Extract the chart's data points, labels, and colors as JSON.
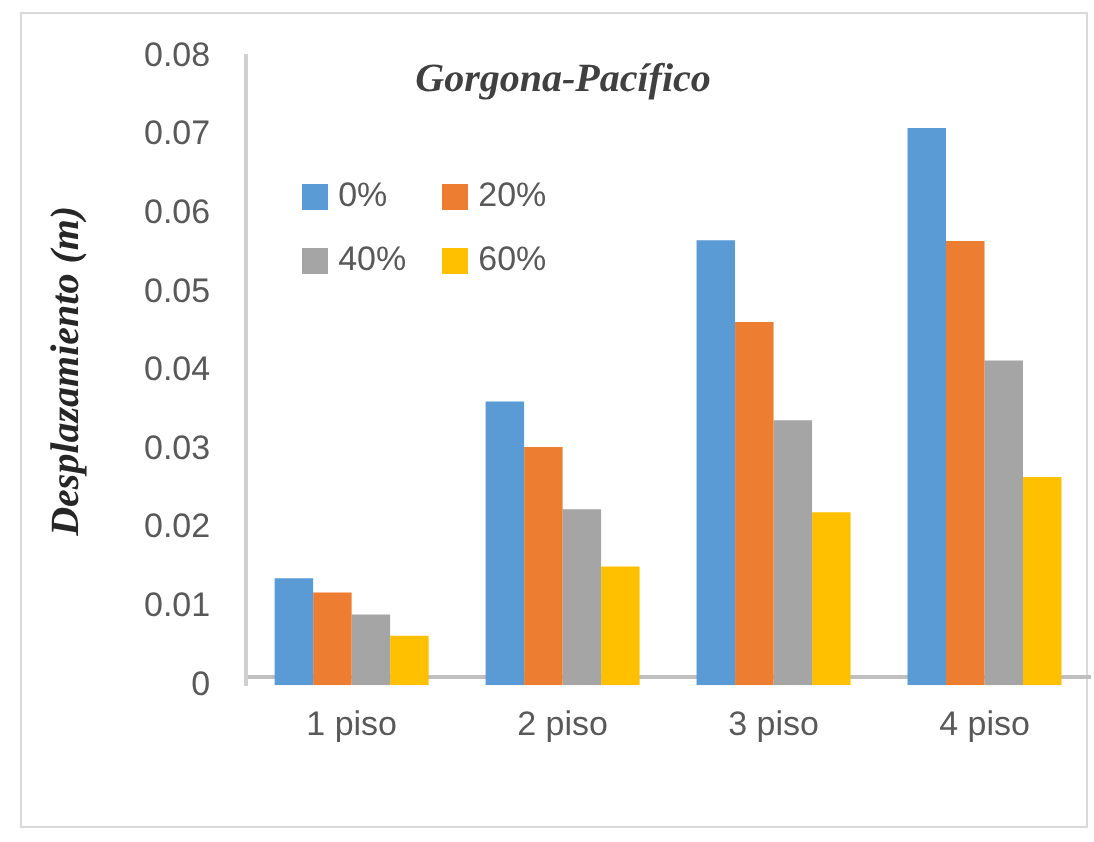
{
  "chart_data": {
    "type": "bar",
    "title": "Gorgona-Pacífico",
    "ylabel": "Desplazamiento (m)",
    "categories": [
      "1 piso",
      "2 piso",
      "3 piso",
      "4 piso"
    ],
    "series": [
      {
        "name": "0%",
        "color": "#5b9bd5",
        "values": [
          0.0136,
          0.0361,
          0.0566,
          0.0709
        ]
      },
      {
        "name": "20%",
        "color": "#ed7d31",
        "values": [
          0.0118,
          0.0303,
          0.0462,
          0.0565
        ]
      },
      {
        "name": "40%",
        "color": "#a5a5a5",
        "values": [
          0.009,
          0.0224,
          0.0337,
          0.0413
        ]
      },
      {
        "name": "60%",
        "color": "#ffc000",
        "values": [
          0.0063,
          0.0151,
          0.022,
          0.0265
        ]
      }
    ],
    "ylim": [
      0,
      0.08
    ],
    "yticks": [
      0,
      0.01,
      0.02,
      0.03,
      0.04,
      0.05,
      0.06,
      0.07,
      0.08
    ],
    "grid": false,
    "legend": "top left"
  }
}
